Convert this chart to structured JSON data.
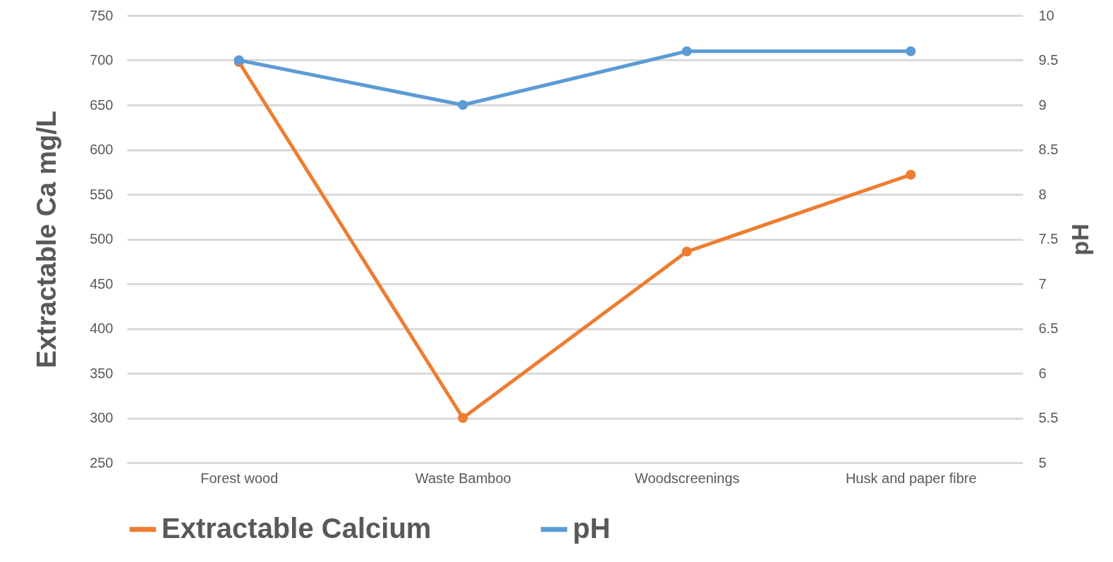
{
  "chart_data": {
    "type": "line",
    "categories": [
      "Forest wood",
      "Waste Bamboo",
      "Woodscreenings",
      "Husk and paper fibre"
    ],
    "ylabel": "Extractable Ca mg/L",
    "y2label": "pH",
    "ylim": [
      250,
      750
    ],
    "yticks": [
      250,
      300,
      350,
      400,
      450,
      500,
      550,
      600,
      650,
      700,
      750
    ],
    "y2lim": [
      5,
      10
    ],
    "y2ticks": [
      5,
      5.5,
      6,
      6.5,
      7,
      7.5,
      8,
      8.5,
      9,
      9.5,
      10
    ],
    "series": [
      {
        "name": "Extractable Calcium",
        "color": "#ed7d31",
        "values": [
          698,
          300,
          486,
          572
        ]
      },
      {
        "name": "pH",
        "color": "#5b9bd5",
        "values": [
          9.5,
          9.0,
          9.6,
          9.6
        ],
        "axis": "y2"
      }
    ],
    "grid": "y",
    "legend": "bottom",
    "marker": "circle"
  }
}
